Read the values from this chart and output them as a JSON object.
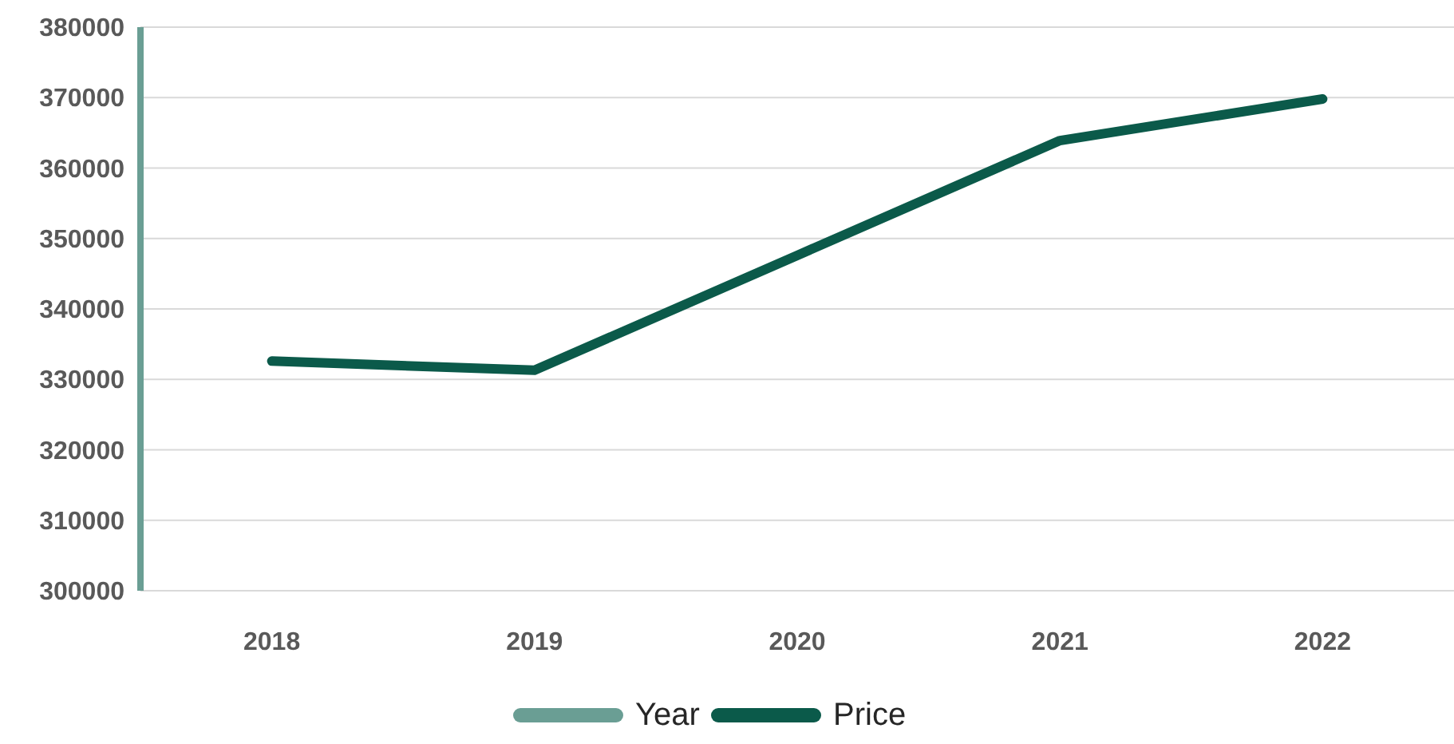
{
  "chart_data": {
    "type": "line",
    "categories": [
      "2018",
      "2019",
      "2020",
      "2021",
      "2022"
    ],
    "series": [
      {
        "name": "Year",
        "color": "#6a9e94",
        "values": [
          null,
          null,
          null,
          null,
          null
        ]
      },
      {
        "name": "Price",
        "color": "#0b5a4a",
        "values": [
          332600,
          331300,
          347600,
          363900,
          369800
        ]
      }
    ],
    "ylim": [
      300000,
      380000
    ],
    "yticks": [
      300000,
      310000,
      320000,
      330000,
      340000,
      350000,
      360000,
      370000,
      380000
    ],
    "grid": "y",
    "legend": "bottom",
    "line_style": "solid"
  }
}
